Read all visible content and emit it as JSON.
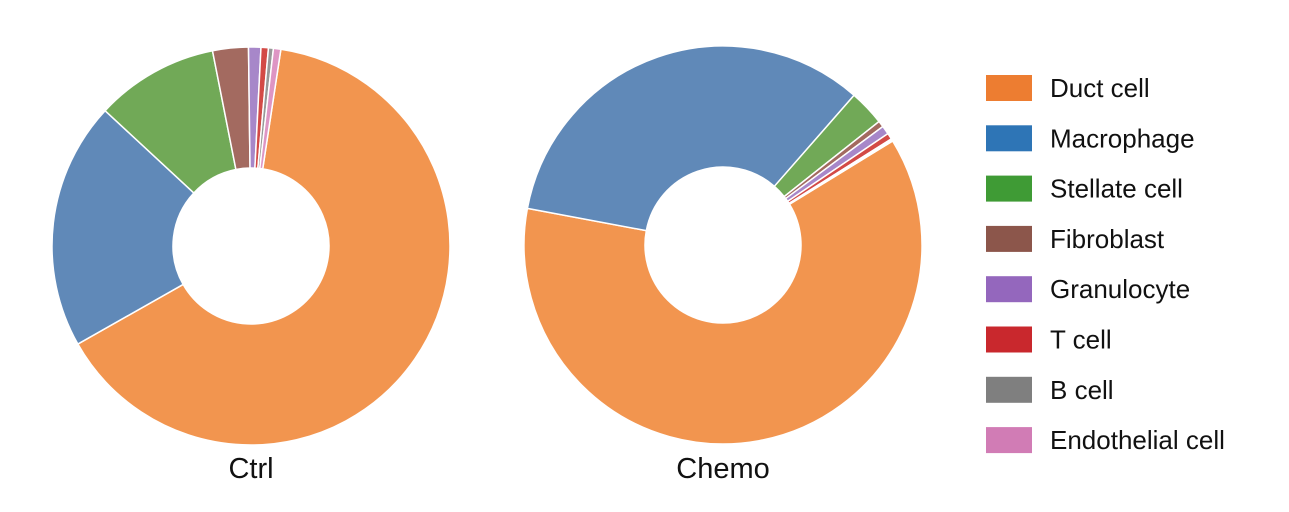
{
  "legend": {
    "items": [
      {
        "label": "Duct cell",
        "color": "#ED7D31"
      },
      {
        "label": "Macrophage",
        "color": "#2E75B6"
      },
      {
        "label": "Stellate cell",
        "color": "#3F9B35"
      },
      {
        "label": "Fibroblast",
        "color": "#8C564B"
      },
      {
        "label": "Granulocyte",
        "color": "#9467BD"
      },
      {
        "label": "T cell",
        "color": "#C9282D"
      },
      {
        "label": "B cell",
        "color": "#7F7F7F"
      },
      {
        "label": "Endothelial cell",
        "color": "#D17CB5"
      }
    ]
  },
  "chart_data": [
    {
      "type": "pie",
      "title": "Ctrl",
      "donut": true,
      "categories": [
        "Duct cell",
        "Macrophage",
        "Stellate cell",
        "Fibroblast",
        "Granulocyte",
        "T cell",
        "B cell",
        "Endothelial cell"
      ],
      "values": [
        64.4,
        20.1,
        10.0,
        2.9,
        1.0,
        0.6,
        0.4,
        0.6
      ],
      "slice_colors": [
        "#F2954F",
        "#6089B8",
        "#71A957",
        "#A36A60",
        "#A787C9",
        "#D34A46",
        "#989898",
        "#DE95C4"
      ]
    },
    {
      "type": "pie",
      "title": "Chemo",
      "donut": true,
      "categories": [
        "Duct cell",
        "Macrophage",
        "Stellate cell",
        "Fibroblast",
        "Granulocyte",
        "T cell",
        "B cell",
        "Endothelial cell"
      ],
      "values": [
        61.7,
        33.5,
        2.9,
        0.5,
        0.7,
        0.5,
        0.1,
        0.1
      ],
      "slice_colors": [
        "#F2954F",
        "#6089B8",
        "#71A957",
        "#A36A60",
        "#A787C9",
        "#D34A46",
        "#989898",
        "#DE95C4"
      ]
    }
  ]
}
